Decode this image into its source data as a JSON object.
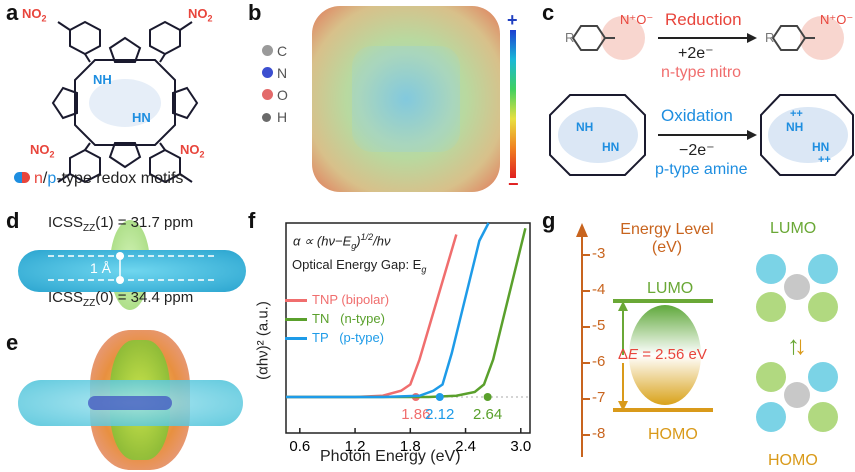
{
  "panel_labels": {
    "a": "a",
    "b": "b",
    "c": "c",
    "d": "d",
    "e": "e",
    "f": "f",
    "g": "g"
  },
  "panel_a": {
    "no2": "NO",
    "sub2": "2",
    "nh": "NH",
    "hn": "HN",
    "legend_n": "n",
    "legend_slash": "/",
    "legend_p": "p",
    "legend_rest": "-type redox motifs"
  },
  "panel_b": {
    "atoms": [
      "C",
      "N",
      "O",
      "H"
    ],
    "scale_plus": "+",
    "scale_minus": "−"
  },
  "panel_c": {
    "reduction": "Reduction",
    "reduction_electrons": "+2e⁻",
    "n_type": "n-type nitro",
    "oxidation": "Oxidation",
    "oxidation_electrons": "−2e⁻",
    "p_type": "p-type amine",
    "r": "R",
    "nh": "NH",
    "hn": "HN",
    "plus_plus": "++"
  },
  "panel_d": {
    "icss_top_main": "ICSS",
    "icss_top_sub": "ZZ",
    "icss_top_val": "(1) = 31.7 ppm",
    "icss_bottom_main": "ICSS",
    "icss_bottom_sub": "ZZ",
    "icss_bottom_val": "(0) = 34.4 ppm",
    "dist": "1 Å"
  },
  "chart_data": {
    "type": "line",
    "xlabel": "Photon Energy (eV)",
    "ylabel": "(αhν)² (a.u.)",
    "xlim": [
      0.45,
      3.1
    ],
    "xticks": [
      "0.6",
      "1.2",
      "1.8",
      "2.4",
      "3.0"
    ],
    "equation": "α ∝ (hν−E",
    "equation_sub": "g",
    "equation_tail": ")",
    "equation_sup": "1/2",
    "equation_end": "/hν",
    "gap_label": "Optical Energy Gap: E",
    "gap_sub": "g",
    "series": [
      {
        "name": "TNP (bipolar)",
        "color": "#f06e6e",
        "x": [
          0.45,
          1.2,
          1.5,
          1.7,
          1.8,
          1.9,
          2.0,
          2.1,
          2.2,
          2.3
        ],
        "y": [
          0.0,
          0.0,
          0.01,
          0.05,
          0.1,
          0.3,
          0.55,
          0.8,
          1.05,
          1.3
        ],
        "gap": 1.86,
        "gap_label": "1.86"
      },
      {
        "name": "TN   (n-type)",
        "color": "#5aa02c",
        "x": [
          0.45,
          2.0,
          2.3,
          2.5,
          2.6,
          2.7,
          2.8,
          2.9,
          3.0,
          3.05
        ],
        "y": [
          0.0,
          0.0,
          0.01,
          0.04,
          0.1,
          0.3,
          0.6,
          0.9,
          1.2,
          1.35
        ],
        "gap": 2.64,
        "gap_label": "2.64"
      },
      {
        "name": "TP   (p-type)",
        "color": "#1e9be8",
        "x": [
          0.45,
          1.5,
          1.9,
          2.05,
          2.15,
          2.25,
          2.35,
          2.45,
          2.55,
          2.65
        ],
        "y": [
          0.0,
          0.0,
          0.01,
          0.05,
          0.1,
          0.35,
          0.65,
          0.95,
          1.25,
          1.4
        ],
        "gap": 2.12,
        "gap_label": "2.12"
      }
    ]
  },
  "panel_g": {
    "title": "Energy Level",
    "unit": "(eV)",
    "ticks": [
      "-3",
      "-4",
      "-5",
      "-6",
      "-7",
      "-8"
    ],
    "lumo": "LUMO",
    "homo": "HOMO",
    "gap_prefix": "Δ",
    "gap_var": "E",
    "gap_value": " = 2.56 eV",
    "orbital_top": "LUMO",
    "orbital_bottom": "HOMO"
  },
  "colors": {
    "red": "#e8453c",
    "blue": "#1e8ee0",
    "green": "#6aa836",
    "orange": "#d98a1a",
    "tnp": "#f06e6e"
  }
}
